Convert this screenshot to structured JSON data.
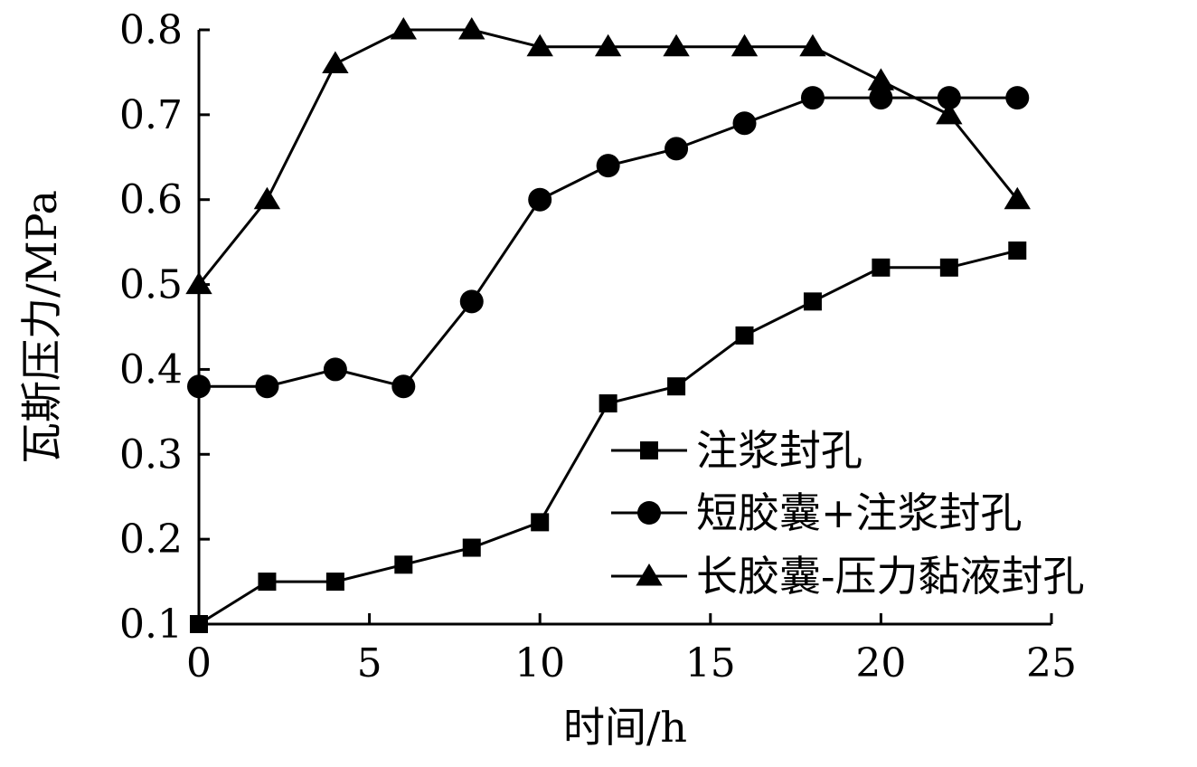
{
  "chart_data": {
    "type": "line",
    "title": "",
    "xlabel": "时间/h",
    "ylabel": "瓦斯压力/MPa",
    "xlim": [
      0,
      25
    ],
    "ylim": [
      0.1,
      0.8
    ],
    "xticks": [
      "0",
      "5",
      "10",
      "15",
      "20",
      "25"
    ],
    "yticks": [
      "0.1",
      "0.2",
      "0.3",
      "0.4",
      "0.5",
      "0.6",
      "0.7",
      "0.8"
    ],
    "grid": false,
    "legend_position": "bottom-right",
    "series": [
      {
        "name": "注浆封孔",
        "marker": "square",
        "x": [
          0,
          2,
          4,
          6,
          8,
          10,
          12,
          14,
          16,
          18,
          20,
          22,
          24
        ],
        "values": [
          0.1,
          0.15,
          0.15,
          0.17,
          0.19,
          0.22,
          0.36,
          0.38,
          0.44,
          0.48,
          0.52,
          0.52,
          0.54
        ]
      },
      {
        "name": "短胶囊+注浆封孔",
        "marker": "circle",
        "x": [
          0,
          2,
          4,
          6,
          8,
          10,
          12,
          14,
          16,
          18,
          20,
          22,
          24
        ],
        "values": [
          0.38,
          0.38,
          0.4,
          0.38,
          0.48,
          0.6,
          0.64,
          0.66,
          0.69,
          0.72,
          0.72,
          0.72,
          0.72
        ]
      },
      {
        "name": "长胶囊-压力黏液封孔",
        "marker": "triangle",
        "x": [
          0,
          2,
          4,
          6,
          8,
          10,
          12,
          14,
          16,
          18,
          20,
          22,
          24
        ],
        "values": [
          0.5,
          0.6,
          0.76,
          0.8,
          0.8,
          0.78,
          0.78,
          0.78,
          0.78,
          0.78,
          0.74,
          0.7,
          0.6
        ]
      }
    ],
    "colors": {
      "line": "#000000",
      "background": "#ffffff"
    }
  }
}
